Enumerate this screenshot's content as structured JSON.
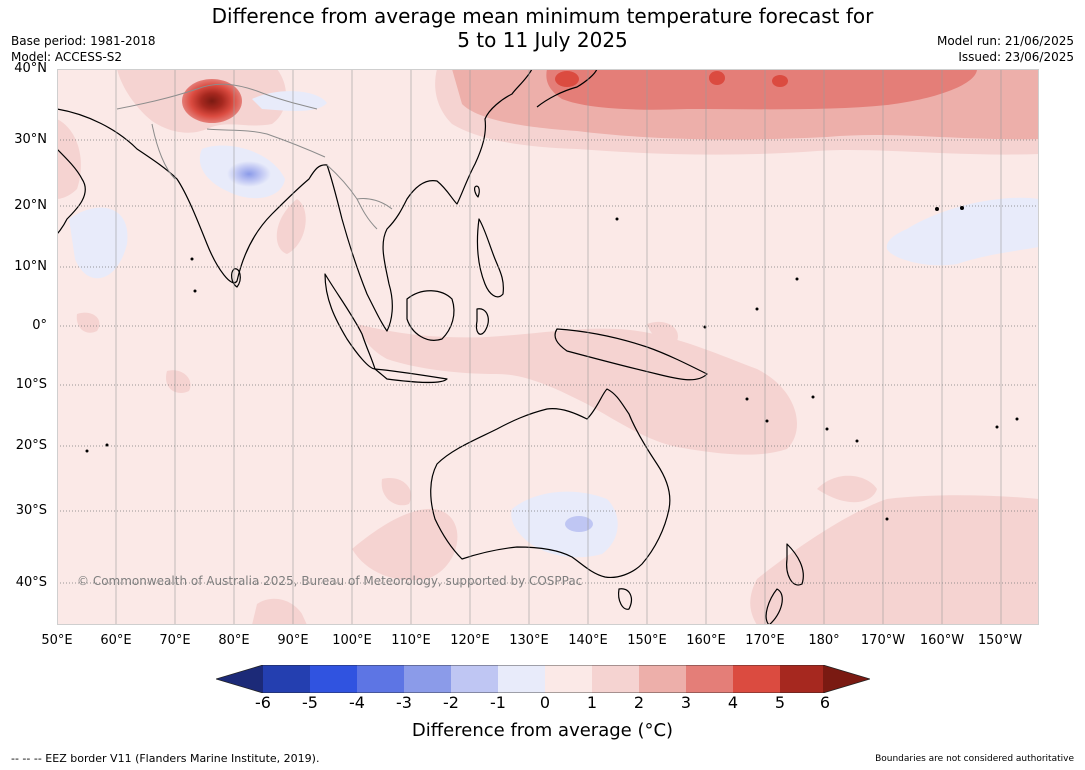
{
  "title": {
    "line1": "Difference from average mean minimum temperature forecast for",
    "line2": "5 to 11 July 2025"
  },
  "meta": {
    "base_period": "Base period: 1981-2018",
    "model": "Model: ACCESS-S2",
    "model_run": "Model run: 21/06/2025",
    "issued": "Issued: 23/06/2025"
  },
  "map": {
    "copyright": "© Commonwealth of Australia 2025, Bureau of Meteorology, supported by COSPPac",
    "lat_ticks": [
      "40°N",
      "30°N",
      "20°N",
      "10°N",
      "0°",
      "10°S",
      "20°S",
      "30°S",
      "40°S"
    ],
    "lon_ticks": [
      "50°E",
      "60°E",
      "70°E",
      "80°E",
      "90°E",
      "100°E",
      "110°E",
      "120°E",
      "130°E",
      "140°E",
      "150°E",
      "160°E",
      "170°E",
      "180°",
      "170°W",
      "160°W",
      "150°W"
    ],
    "colors": {
      "land_outline": "#000000",
      "border": "#8c8c8c",
      "grid": "#7a7a7a"
    }
  },
  "colorbar": {
    "ticks": [
      "-6",
      "-5",
      "-4",
      "-3",
      "-2",
      "-1",
      "0",
      "1",
      "2",
      "3",
      "4",
      "5",
      "6"
    ],
    "colors": [
      "#1c2a78",
      "#243fb0",
      "#3053e0",
      "#5d75e4",
      "#8b9be9",
      "#bfc6f3",
      "#e8ebfa",
      "#fbe9e7",
      "#f5d3d1",
      "#edafaa",
      "#e47e78",
      "#db4b40",
      "#a6281f",
      "#7a1a12"
    ],
    "label": "Difference from average (°C)"
  },
  "footer": {
    "eez": "--  --  -- EEZ border V11 (Flanders Marine Institute, 2019).",
    "disclaimer": "Boundaries are not considered authoritative"
  }
}
